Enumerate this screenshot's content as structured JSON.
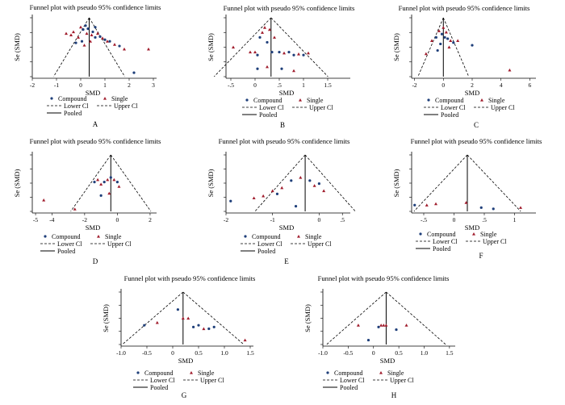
{
  "chart_data": [
    {
      "type": "scatter",
      "title": "Funnel plot with pseudo 95% confidence limits",
      "xlabel": "SMD",
      "ylabel": "Se (SMD)",
      "xlim": [
        -2,
        3
      ],
      "xticks": [
        "-2",
        "-1",
        "0",
        "1",
        "2",
        "3"
      ],
      "pooled": 0.35,
      "se_max": 0.75,
      "legend": {
        "compound": "Compound",
        "single": "Single",
        "lower": "Lower Cl",
        "upper": "Upper Cl",
        "pooled": "Pooled"
      },
      "panel_label": "A",
      "points": [
        {
          "x": -0.6,
          "y": 0.2,
          "g": "single"
        },
        {
          "x": -0.4,
          "y": 0.22,
          "g": "single"
        },
        {
          "x": -0.3,
          "y": 0.18,
          "g": "single"
        },
        {
          "x": -0.1,
          "y": 0.25,
          "g": "single"
        },
        {
          "x": 0.0,
          "y": 0.12,
          "g": "single"
        },
        {
          "x": 0.1,
          "y": 0.15,
          "g": "compound"
        },
        {
          "x": 0.2,
          "y": 0.1,
          "g": "compound"
        },
        {
          "x": 0.25,
          "y": 0.2,
          "g": "single"
        },
        {
          "x": 0.3,
          "y": 0.14,
          "g": "compound"
        },
        {
          "x": 0.45,
          "y": 0.22,
          "g": "single"
        },
        {
          "x": 0.5,
          "y": 0.18,
          "g": "compound"
        },
        {
          "x": 0.6,
          "y": 0.25,
          "g": "compound"
        },
        {
          "x": 0.7,
          "y": 0.2,
          "g": "single"
        },
        {
          "x": 0.8,
          "y": 0.24,
          "g": "compound"
        },
        {
          "x": 0.9,
          "y": 0.26,
          "g": "single"
        },
        {
          "x": 1.0,
          "y": 0.28,
          "g": "compound"
        },
        {
          "x": 1.1,
          "y": 0.3,
          "g": "single"
        },
        {
          "x": 1.2,
          "y": 0.3,
          "g": "compound"
        },
        {
          "x": 1.4,
          "y": 0.34,
          "g": "single"
        },
        {
          "x": 1.6,
          "y": 0.36,
          "g": "compound"
        },
        {
          "x": 1.8,
          "y": 0.4,
          "g": "single"
        },
        {
          "x": 2.2,
          "y": 0.7,
          "g": "compound"
        },
        {
          "x": 2.8,
          "y": 0.4,
          "g": "single"
        },
        {
          "x": 0.05,
          "y": 0.3,
          "g": "compound"
        },
        {
          "x": 0.4,
          "y": 0.3,
          "g": "single"
        },
        {
          "x": -0.2,
          "y": 0.32,
          "g": "compound"
        },
        {
          "x": 0.15,
          "y": 0.35,
          "g": "single"
        },
        {
          "x": 0.6,
          "y": 0.12,
          "g": "compound"
        }
      ]
    },
    {
      "type": "scatter",
      "title": "Funnel plot with pseudo 95% confidence limits",
      "xlabel": "SMD",
      "ylabel": "Se (SMD)",
      "xlim": [
        -0.6,
        1.9
      ],
      "xticks": [
        "-.5",
        "0",
        ".5",
        "1",
        "1.5"
      ],
      "pooled": 0.33,
      "se_max": 0.6,
      "legend": {
        "compound": "Compound",
        "single": "Single",
        "lower": "Lower Cl",
        "upper": "Upper Cl",
        "pooled": "Pooled"
      },
      "panel_label": "B",
      "points": [
        {
          "x": -0.45,
          "y": 0.3,
          "g": "single"
        },
        {
          "x": -0.1,
          "y": 0.35,
          "g": "single"
        },
        {
          "x": 0.0,
          "y": 0.35,
          "g": "single"
        },
        {
          "x": 0.05,
          "y": 0.38,
          "g": "compound"
        },
        {
          "x": 0.1,
          "y": 0.2,
          "g": "compound"
        },
        {
          "x": 0.15,
          "y": 0.15,
          "g": "single"
        },
        {
          "x": 0.2,
          "y": 0.1,
          "g": "single"
        },
        {
          "x": 0.25,
          "y": 0.25,
          "g": "compound"
        },
        {
          "x": 0.3,
          "y": 0.12,
          "g": "single"
        },
        {
          "x": 0.35,
          "y": 0.35,
          "g": "compound"
        },
        {
          "x": 0.4,
          "y": 0.2,
          "g": "single"
        },
        {
          "x": 0.5,
          "y": 0.35,
          "g": "compound"
        },
        {
          "x": 0.6,
          "y": 0.36,
          "g": "single"
        },
        {
          "x": 0.7,
          "y": 0.35,
          "g": "compound"
        },
        {
          "x": 0.8,
          "y": 0.38,
          "g": "compound"
        },
        {
          "x": 0.9,
          "y": 0.37,
          "g": "single"
        },
        {
          "x": 1.0,
          "y": 0.38,
          "g": "compound"
        },
        {
          "x": 1.1,
          "y": 0.36,
          "g": "single"
        },
        {
          "x": 0.05,
          "y": 0.52,
          "g": "compound"
        },
        {
          "x": 0.25,
          "y": 0.5,
          "g": "single"
        },
        {
          "x": 0.55,
          "y": 0.52,
          "g": "compound"
        },
        {
          "x": 0.8,
          "y": 0.54,
          "g": "single"
        }
      ]
    },
    {
      "type": "scatter",
      "title": "Funnel plot with pseudo 95% confidence limits",
      "xlabel": "SMD",
      "ylabel": "Se (SMD)",
      "xlim": [
        -2.2,
        6.2
      ],
      "xticks": [
        "-2",
        "0",
        "2",
        "4",
        "6"
      ],
      "pooled": 0.0,
      "se_max": 0.9,
      "legend": {
        "compound": "Compound",
        "single": "Single",
        "lower": "Lower Cl",
        "upper": "Upper Cl",
        "pooled": "Pooled"
      },
      "panel_label": "C",
      "points": [
        {
          "x": -1.2,
          "y": 0.55,
          "g": "single"
        },
        {
          "x": -0.8,
          "y": 0.35,
          "g": "single"
        },
        {
          "x": -0.5,
          "y": 0.3,
          "g": "compound"
        },
        {
          "x": -0.3,
          "y": 0.2,
          "g": "single"
        },
        {
          "x": -0.1,
          "y": 0.25,
          "g": "compound"
        },
        {
          "x": 0.0,
          "y": 0.15,
          "g": "single"
        },
        {
          "x": 0.1,
          "y": 0.3,
          "g": "compound"
        },
        {
          "x": 0.2,
          "y": 0.22,
          "g": "single"
        },
        {
          "x": 0.3,
          "y": 0.32,
          "g": "compound"
        },
        {
          "x": 0.5,
          "y": 0.35,
          "g": "single"
        },
        {
          "x": 0.7,
          "y": 0.38,
          "g": "compound"
        },
        {
          "x": 1.0,
          "y": 0.35,
          "g": "single"
        },
        {
          "x": 2.0,
          "y": 0.42,
          "g": "compound"
        },
        {
          "x": 4.6,
          "y": 0.8,
          "g": "single"
        },
        {
          "x": -0.2,
          "y": 0.4,
          "g": "compound"
        },
        {
          "x": 0.4,
          "y": 0.45,
          "g": "single"
        },
        {
          "x": -0.4,
          "y": 0.5,
          "g": "compound"
        }
      ]
    },
    {
      "type": "scatter",
      "title": "Funnel plot with pseudo 95% confidence limits",
      "xlabel": "SMD",
      "ylabel": "Se (SMD)",
      "xlim": [
        -5.2,
        2.2
      ],
      "xticks": [
        "-5",
        "-4",
        "-2",
        "0",
        "2"
      ],
      "pooled": -0.4,
      "se_max": 1.25,
      "legend": {
        "compound": "Compound",
        "single": "Single",
        "lower": "Lower Cl",
        "upper": "Upper Cl",
        "pooled": "Pooled"
      },
      "panel_label": "D",
      "points": [
        {
          "x": -4.5,
          "y": 1.0,
          "g": "single"
        },
        {
          "x": -2.6,
          "y": 1.2,
          "g": "single"
        },
        {
          "x": -1.4,
          "y": 0.6,
          "g": "compound"
        },
        {
          "x": -1.2,
          "y": 0.55,
          "g": "single"
        },
        {
          "x": -1.0,
          "y": 0.65,
          "g": "single"
        },
        {
          "x": -0.8,
          "y": 0.6,
          "g": "compound"
        },
        {
          "x": -0.6,
          "y": 0.55,
          "g": "single"
        },
        {
          "x": -0.4,
          "y": 0.5,
          "g": "compound"
        },
        {
          "x": -0.2,
          "y": 0.55,
          "g": "single"
        },
        {
          "x": 0.0,
          "y": 0.6,
          "g": "compound"
        },
        {
          "x": 0.1,
          "y": 0.7,
          "g": "single"
        },
        {
          "x": -1.0,
          "y": 0.9,
          "g": "compound"
        },
        {
          "x": -0.5,
          "y": 0.85,
          "g": "single"
        }
      ]
    },
    {
      "type": "scatter",
      "title": "Funnel plot with pseudo 95% confidence limits",
      "xlabel": "SMD",
      "ylabel": "Se (SMD)",
      "xlim": [
        -2.0,
        0.6
      ],
      "xticks": [
        "-2",
        "-1",
        "0",
        ".5"
      ],
      "pooled": -0.3,
      "se_max": 0.55,
      "legend": {
        "compound": "Compound",
        "single": "Single",
        "lower": "Lower Cl",
        "upper": "Upper Cl",
        "pooled": "Pooled"
      },
      "panel_label": "E",
      "points": [
        {
          "x": -1.9,
          "y": 0.45,
          "g": "compound"
        },
        {
          "x": -1.4,
          "y": 0.42,
          "g": "single"
        },
        {
          "x": -1.2,
          "y": 0.4,
          "g": "single"
        },
        {
          "x": -1.0,
          "y": 0.35,
          "g": "single"
        },
        {
          "x": -0.8,
          "y": 0.32,
          "g": "single"
        },
        {
          "x": -0.6,
          "y": 0.25,
          "g": "compound"
        },
        {
          "x": -0.4,
          "y": 0.22,
          "g": "single"
        },
        {
          "x": -0.2,
          "y": 0.25,
          "g": "compound"
        },
        {
          "x": -0.1,
          "y": 0.3,
          "g": "single"
        },
        {
          "x": 0.0,
          "y": 0.28,
          "g": "compound"
        },
        {
          "x": 0.1,
          "y": 0.35,
          "g": "single"
        },
        {
          "x": -0.5,
          "y": 0.5,
          "g": "compound"
        },
        {
          "x": -0.9,
          "y": 0.38,
          "g": "compound"
        }
      ]
    },
    {
      "type": "scatter",
      "title": "Funnel plot with pseudo 95% confidence limits",
      "xlabel": "SMD",
      "ylabel": "Se (SMD)",
      "xlim": [
        -0.7,
        1.3
      ],
      "xticks": [
        "-.5",
        "0",
        ".5",
        "1"
      ],
      "pooled": 0.22,
      "se_max": 0.45,
      "legend": {
        "compound": "Compound",
        "single": "Single",
        "lower": "Lower Cl",
        "upper": "Upper Cl",
        "pooled": "Pooled"
      },
      "panel_label": "F",
      "points": [
        {
          "x": -0.65,
          "y": 0.4,
          "g": "compound"
        },
        {
          "x": -0.45,
          "y": 0.4,
          "g": "single"
        },
        {
          "x": -0.3,
          "y": 0.39,
          "g": "single"
        },
        {
          "x": 0.2,
          "y": 0.38,
          "g": "single"
        },
        {
          "x": 0.45,
          "y": 0.42,
          "g": "compound"
        },
        {
          "x": 0.65,
          "y": 0.43,
          "g": "compound"
        },
        {
          "x": 1.1,
          "y": 0.42,
          "g": "single"
        }
      ]
    },
    {
      "type": "scatter",
      "title": "Funnel plot with pseudo 95% confidence limits",
      "xlabel": "SMD",
      "ylabel": "Se (SMD)",
      "xlim": [
        -1.0,
        1.5
      ],
      "xticks": [
        "-1.0",
        "-0.5",
        "0",
        "0.5",
        "1.0",
        "1.5"
      ],
      "pooled": 0.2,
      "se_max": 0.6,
      "legend": {
        "compound": "Compound",
        "single": "Single",
        "lower": "Lower Cl",
        "upper": "Upper Cl",
        "pooled": "Pooled"
      },
      "panel_label": "G",
      "points": [
        {
          "x": -0.55,
          "y": 0.38,
          "g": "compound"
        },
        {
          "x": -0.3,
          "y": 0.35,
          "g": "single"
        },
        {
          "x": 0.1,
          "y": 0.2,
          "g": "compound"
        },
        {
          "x": 0.2,
          "y": 0.3,
          "g": "single"
        },
        {
          "x": 0.3,
          "y": 0.3,
          "g": "single"
        },
        {
          "x": 0.4,
          "y": 0.4,
          "g": "compound"
        },
        {
          "x": 0.5,
          "y": 0.38,
          "g": "compound"
        },
        {
          "x": 0.6,
          "y": 0.42,
          "g": "single"
        },
        {
          "x": 0.7,
          "y": 0.42,
          "g": "compound"
        },
        {
          "x": 0.8,
          "y": 0.4,
          "g": "compound"
        },
        {
          "x": 1.4,
          "y": 0.55,
          "g": "single"
        }
      ]
    },
    {
      "type": "scatter",
      "title": "Funnel plot with pseudo 95% confidence limits",
      "xlabel": "SMD",
      "ylabel": "Se (SMD)",
      "xlim": [
        -1.0,
        1.55
      ],
      "xticks": [
        "-1.0",
        "-0.5",
        "0",
        "0.5",
        "1.0",
        "1.5"
      ],
      "pooled": 0.25,
      "se_max": 0.6,
      "legend": {
        "compound": "Compound",
        "single": "Single",
        "lower": "Lower Cl",
        "upper": "Upper Cl",
        "pooled": "Pooled"
      },
      "panel_label": "H",
      "points": [
        {
          "x": -0.3,
          "y": 0.38,
          "g": "single"
        },
        {
          "x": -0.1,
          "y": 0.55,
          "g": "compound"
        },
        {
          "x": 0.1,
          "y": 0.4,
          "g": "compound"
        },
        {
          "x": 0.15,
          "y": 0.38,
          "g": "single"
        },
        {
          "x": 0.2,
          "y": 0.38,
          "g": "single"
        },
        {
          "x": 0.25,
          "y": 0.38,
          "g": "single"
        },
        {
          "x": 0.45,
          "y": 0.43,
          "g": "compound"
        },
        {
          "x": 0.65,
          "y": 0.38,
          "g": "single"
        }
      ]
    }
  ],
  "colors": {
    "compound": "#1f3f7a",
    "single": "#a01c2c",
    "line": "#000000"
  }
}
